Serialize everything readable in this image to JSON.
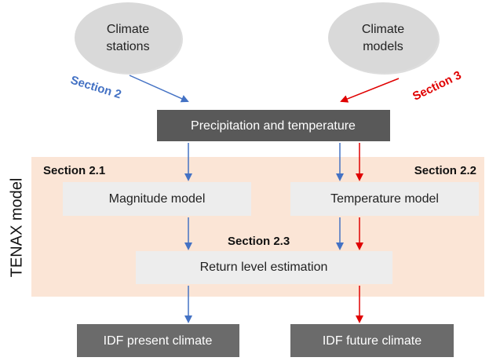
{
  "sources": [
    {
      "label1": "Climate",
      "label2": "stations"
    },
    {
      "label1": "Climate",
      "label2": "models"
    }
  ],
  "links": {
    "left": "Section 2",
    "right": "Section 3"
  },
  "input": "Precipitation and temperature",
  "model": {
    "label": "TENAX model",
    "sections": [
      "Section 2.1",
      "Section 2.2",
      "Section 2.3"
    ],
    "boxes": [
      "Magnitude model",
      "Temperature model",
      "Return level estimation"
    ]
  },
  "outputs": [
    "IDF present climate",
    "IDF future climate"
  ]
}
